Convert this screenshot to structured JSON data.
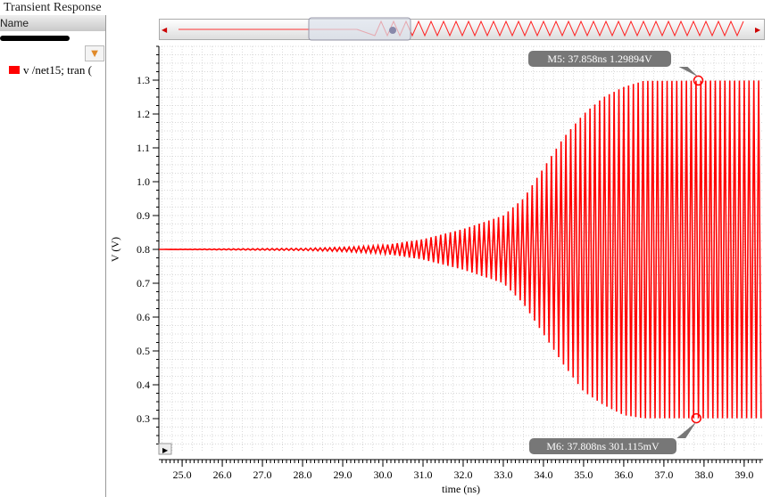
{
  "window": {
    "title": "Transient Response"
  },
  "legend_panel": {
    "header": "Name",
    "filter_icon": "funnel-icon",
    "entries": [
      {
        "label": "v /net15; tran (",
        "color": "#ff0000"
      }
    ]
  },
  "overview": {
    "left_arrow": "arrow-left-icon",
    "right_arrow": "arrow-right-icon"
  },
  "chart_data": {
    "type": "line",
    "xlabel": "time (ns)",
    "ylabel": "V (V)",
    "xlim": [
      24.42,
      39.47
    ],
    "ylim": [
      0.2,
      1.4
    ],
    "xticks": [
      "25.0",
      "26.0",
      "27.0",
      "28.0",
      "29.0",
      "30.0",
      "31.0",
      "32.0",
      "33.0",
      "34.0",
      "35.0",
      "36.0",
      "37.0",
      "38.0",
      "39.0"
    ],
    "yticks": [
      "0.3",
      "0.4",
      "0.5",
      "0.6",
      "0.7",
      "0.8",
      "0.9",
      "1.0",
      "1.1",
      "1.2",
      "1.3"
    ],
    "grid": true,
    "series": [
      {
        "name": "v /net15; tran",
        "color": "#ff0000",
        "envelope": {
          "time": [
            24.42,
            28.0,
            29.0,
            30.0,
            31.0,
            32.0,
            33.0,
            33.5,
            34.0,
            34.5,
            35.0,
            35.5,
            36.0,
            36.5,
            39.47
          ],
          "upper": [
            0.8,
            0.803,
            0.806,
            0.812,
            0.83,
            0.86,
            0.9,
            0.95,
            1.04,
            1.13,
            1.2,
            1.25,
            1.28,
            1.298,
            1.299
          ],
          "lower": [
            0.8,
            0.797,
            0.794,
            0.788,
            0.77,
            0.74,
            0.7,
            0.64,
            0.55,
            0.46,
            0.38,
            0.34,
            0.31,
            0.301,
            0.301
          ]
        }
      }
    ],
    "markers": [
      {
        "label": "M5: 37.858ns 1.29894V",
        "x": 37.858,
        "y": 1.29894
      },
      {
        "label": "M6: 37.808ns 301.115mV",
        "x": 37.808,
        "y": 0.301115
      }
    ]
  }
}
